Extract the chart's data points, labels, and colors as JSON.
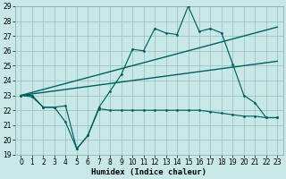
{
  "x": [
    0,
    1,
    2,
    3,
    4,
    5,
    6,
    7,
    8,
    9,
    10,
    11,
    12,
    13,
    14,
    15,
    16,
    17,
    18,
    19,
    20,
    21,
    22,
    23
  ],
  "line_main": [
    23.0,
    22.9,
    22.2,
    22.2,
    21.2,
    19.4,
    20.3,
    22.2,
    23.3,
    24.4,
    26.1,
    26.0,
    27.5,
    27.2,
    27.1,
    29.0,
    27.3,
    27.5,
    27.2,
    25.1,
    23.0,
    22.5,
    21.5,
    21.5
  ],
  "line_low": [
    23.0,
    23.0,
    22.2,
    22.2,
    22.3,
    19.4,
    20.3,
    22.1,
    22.0,
    22.0,
    22.0,
    22.0,
    22.0,
    22.0,
    22.0,
    22.0,
    22.0,
    21.9,
    21.8,
    21.7,
    21.6,
    21.6,
    21.5,
    21.5
  ],
  "trend_hi": [
    23.0,
    23.2,
    23.4,
    23.6,
    23.8,
    24.0,
    24.2,
    24.4,
    24.6,
    24.8,
    25.0,
    25.2,
    25.4,
    25.6,
    25.8,
    26.0,
    26.2,
    26.4,
    26.6,
    26.8,
    27.0,
    27.2,
    27.4,
    27.6
  ],
  "trend_lo": [
    23.0,
    23.1,
    23.2,
    23.3,
    23.4,
    23.5,
    23.6,
    23.7,
    23.8,
    23.9,
    24.0,
    24.1,
    24.2,
    24.3,
    24.4,
    24.5,
    24.6,
    24.7,
    24.8,
    24.9,
    25.0,
    25.1,
    25.2,
    25.3
  ],
  "bg_color": "#c8e8e8",
  "grid_color": "#99bbbb",
  "line_color": "#006060",
  "xlabel": "Humidex (Indice chaleur)",
  "ylim": [
    19,
    29
  ],
  "xlim": [
    -0.5,
    23.5
  ],
  "yticks": [
    19,
    20,
    21,
    22,
    23,
    24,
    25,
    26,
    27,
    28,
    29
  ],
  "xticks": [
    0,
    1,
    2,
    3,
    4,
    5,
    6,
    7,
    8,
    9,
    10,
    11,
    12,
    13,
    14,
    15,
    16,
    17,
    18,
    19,
    20,
    21,
    22,
    23
  ],
  "axis_fontsize": 5.5,
  "label_fontsize": 6.5
}
